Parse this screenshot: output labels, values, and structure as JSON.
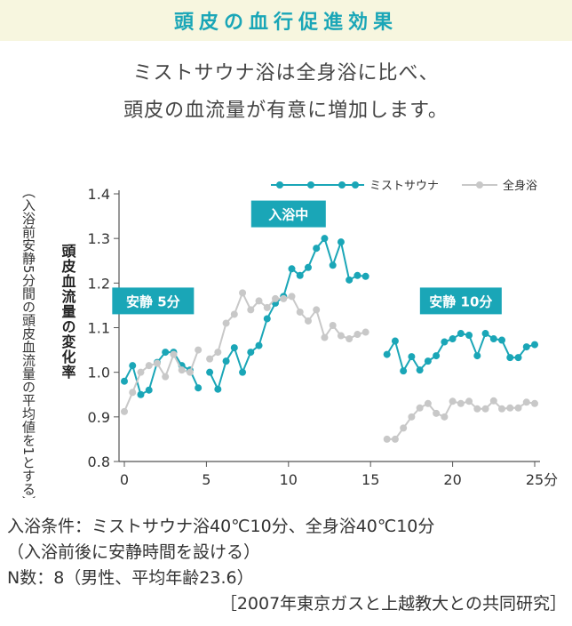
{
  "header": {
    "title": "頭皮の血行促進効果",
    "lead_1": "ミストサウナ浴は全身浴に比べ、",
    "lead_2": "頭皮の血流量が有意に増加します。"
  },
  "colors": {
    "title": "#1aa6b7",
    "title_band": "#f7f6df",
    "mist": "#1aa6b7",
    "bath": "#c8c8c8",
    "phase_box": "#1aa6b7"
  },
  "chart_data": {
    "type": "line",
    "ylabel": "頭皮血流量の変化率",
    "ylabel_note": "（入浴前安静5分間の頭皮血流量の平均値を1とする）",
    "xlabel": "",
    "x_unit": "分",
    "xlim": [
      0,
      25
    ],
    "ylim": [
      0.8,
      1.4
    ],
    "x_ticks": [
      0,
      5,
      10,
      15,
      20,
      25
    ],
    "y_ticks": [
      0.8,
      0.9,
      1.0,
      1.1,
      1.2,
      1.3,
      1.4
    ],
    "x_tick_labels": [
      "0",
      "5",
      "10",
      "15",
      "20",
      "25分"
    ],
    "y_tick_labels": [
      "0.8",
      "0.9",
      "1.0",
      "1.1",
      "1.2",
      "1.3",
      "1.4"
    ],
    "grid": false,
    "legend": "top-right",
    "phases": [
      {
        "label": "安静 5分",
        "x": 1.75,
        "y": 1.16
      },
      {
        "label": "入浴中",
        "x": 10.0,
        "y": 1.355
      },
      {
        "label": "安静 10分",
        "x": 20.5,
        "y": 1.16
      }
    ],
    "series": [
      {
        "name": "ミストサウナ",
        "segments": [
          {
            "x": [
              0,
              0.5,
              1.0,
              1.5,
              2.0,
              2.5,
              3.0,
              3.5,
              4.0,
              4.5
            ],
            "y": [
              0.98,
              1.015,
              0.95,
              0.96,
              1.022,
              1.045,
              1.045,
              1.015,
              1.005,
              0.965
            ]
          },
          {
            "x": [
              5.2,
              5.7,
              6.2,
              6.7,
              7.2,
              7.7,
              8.2,
              8.7,
              9.2,
              9.7,
              10.2,
              10.7,
              11.2,
              11.7,
              12.2,
              12.7,
              13.2,
              13.7,
              14.2,
              14.7
            ],
            "y": [
              1.0,
              0.962,
              1.025,
              1.055,
              1.0,
              1.045,
              1.06,
              1.12,
              1.155,
              1.17,
              1.232,
              1.217,
              1.235,
              1.278,
              1.3,
              1.24,
              1.292,
              1.207,
              1.217,
              1.215
            ]
          },
          {
            "x": [
              16.0,
              16.5,
              17.0,
              17.5,
              18.0,
              18.5,
              19.0,
              19.5,
              20.0,
              20.5,
              21.0,
              21.5,
              22.0,
              22.5,
              23.0,
              23.5,
              24.0,
              24.5,
              25.0
            ],
            "y": [
              1.04,
              1.07,
              1.003,
              1.035,
              1.005,
              1.025,
              1.037,
              1.068,
              1.075,
              1.087,
              1.083,
              1.037,
              1.087,
              1.075,
              1.072,
              1.033,
              1.033,
              1.057,
              1.062
            ]
          }
        ]
      },
      {
        "name": "全身浴",
        "segments": [
          {
            "x": [
              0,
              0.5,
              1.0,
              1.5,
              2.0,
              2.5,
              3.0,
              3.5,
              4.0,
              4.5
            ],
            "y": [
              0.912,
              0.955,
              1.0,
              1.015,
              1.02,
              0.99,
              1.04,
              1.005,
              1.0,
              1.05
            ]
          },
          {
            "x": [
              5.2,
              5.7,
              6.2,
              6.7,
              7.2,
              7.7,
              8.2,
              8.7,
              9.2,
              9.7,
              10.2,
              10.7,
              11.2,
              11.7,
              12.2,
              12.7,
              13.2,
              13.7,
              14.2,
              14.7
            ],
            "y": [
              1.03,
              1.045,
              1.11,
              1.13,
              1.178,
              1.14,
              1.16,
              1.145,
              1.165,
              1.165,
              1.17,
              1.135,
              1.115,
              1.14,
              1.078,
              1.105,
              1.082,
              1.075,
              1.085,
              1.09
            ]
          },
          {
            "x": [
              16.0,
              16.5,
              17.0,
              17.5,
              18.0,
              18.5,
              19.0,
              19.5,
              20.0,
              20.5,
              21.0,
              21.5,
              22.0,
              22.5,
              23.0,
              23.5,
              24.0,
              24.5,
              25.0
            ],
            "y": [
              0.85,
              0.85,
              0.875,
              0.9,
              0.92,
              0.93,
              0.908,
              0.9,
              0.935,
              0.93,
              0.935,
              0.918,
              0.918,
              0.936,
              0.918,
              0.92,
              0.92,
              0.933,
              0.93
            ]
          }
        ]
      }
    ]
  },
  "footer": {
    "line_1": "入浴条件：ミストサウナ浴40℃10分、全身浴40℃10分",
    "line_2": "（入浴前後に安静時間を設ける）",
    "line_3": "N数：8（男性、平均年齢23.6）",
    "source": "［2007年東京ガスと上越教大との共同研究］"
  }
}
